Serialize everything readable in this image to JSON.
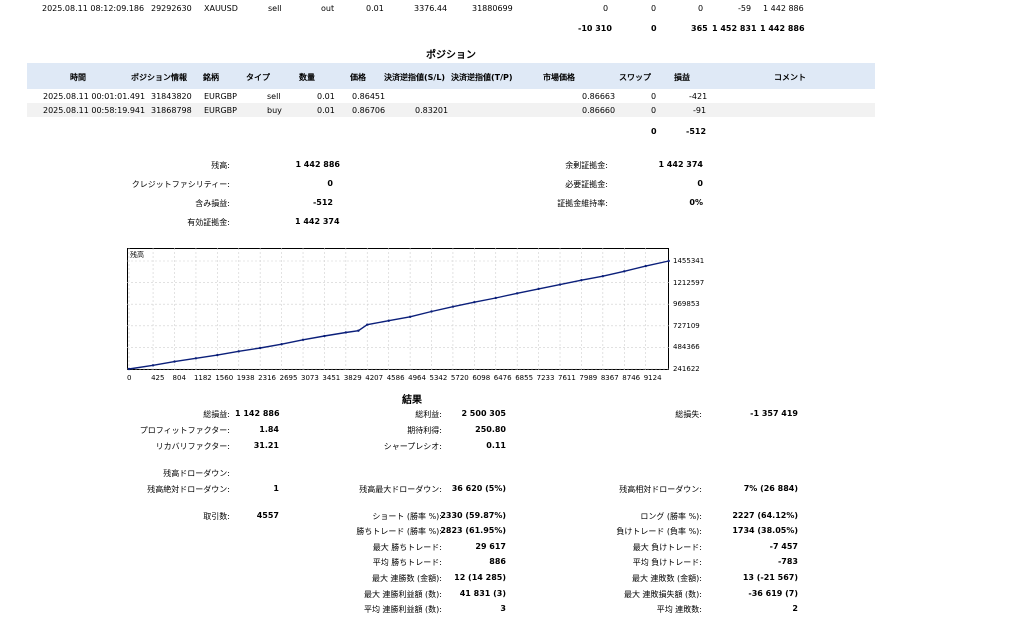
{
  "top_row": {
    "time": "2025.08.11 08:12:09.186",
    "order": "29292630",
    "symbol": "XAUUSD",
    "type": "sell",
    "direction": "out",
    "volume": "0.01",
    "price": "3376.44",
    "deal": "31880699",
    "commission": "0",
    "fee": "0",
    "swap": "0",
    "profit": "-59",
    "balance": "1 442 886"
  },
  "totals_row": {
    "commission": "-10 310",
    "fee": "0",
    "swap": "365",
    "profit": "1 452 831",
    "balance": "1 442 886"
  },
  "positions": {
    "title": "ポジション",
    "headers": {
      "time": "時間",
      "position": "ポジション情報",
      "symbol": "銘柄",
      "type": "タイプ",
      "volume": "数量",
      "price": "価格",
      "sl": "決済逆指値(S/L)",
      "tp": "決済逆指値(T/P)",
      "market_price": "市場価格",
      "swap": "スワップ",
      "profit": "損益",
      "comment": "コメント"
    },
    "rows": [
      {
        "time": "2025.08.11 00:01:01.491",
        "position": "31843820",
        "symbol": "EURGBP",
        "type": "sell",
        "volume": "0.01",
        "price": "0.86451",
        "sl": "",
        "tp": "",
        "market_price": "0.86663",
        "swap": "0",
        "profit": "-421"
      },
      {
        "time": "2025.08.11 00:58:19.941",
        "position": "31868798",
        "symbol": "EURGBP",
        "type": "buy",
        "volume": "0.01",
        "price": "0.86706",
        "sl": "0.83201",
        "tp": "",
        "market_price": "0.86660",
        "swap": "0",
        "profit": "-91"
      }
    ],
    "total_swap": "0",
    "total_profit": "-512"
  },
  "account": {
    "balance_label": "残高:",
    "balance": "1 442 886",
    "credit_label": "クレジットファシリティー:",
    "credit": "0",
    "floating_label": "含み損益:",
    "floating": "-512",
    "equity_label": "有効証拠金:",
    "equity": "1 442 374",
    "free_margin_label": "余剰証拠金:",
    "free_margin": "1 442 374",
    "margin_label": "必要証拠金:",
    "margin": "0",
    "margin_level_label": "証拠金維持率:",
    "margin_level": "0%"
  },
  "chart_data": {
    "type": "line",
    "title": "残高",
    "x_ticks": [
      "0",
      "425",
      "804",
      "1182",
      "1560",
      "1938",
      "2316",
      "2695",
      "3073",
      "3451",
      "3829",
      "4207",
      "4586",
      "4964",
      "5342",
      "5720",
      "6098",
      "6476",
      "6855",
      "7233",
      "7611",
      "7989",
      "8367",
      "8746",
      "9124"
    ],
    "y_ticks": [
      "1455341",
      "1212597",
      "969853",
      "727109",
      "484366",
      "241622"
    ],
    "xlim": [
      0,
      9500
    ],
    "ylim": [
      241622,
      1455341
    ],
    "grid": true,
    "line_color": "#0b1f7a",
    "series": [
      {
        "x": [
          0,
          425,
          804,
          1182,
          1560,
          1938,
          2316,
          2695,
          3073,
          3451,
          3829,
          4050,
          4207,
          4586,
          4964,
          5342,
          5720,
          6098,
          6476,
          6855,
          7233,
          7611,
          7989,
          8367,
          8746,
          9124,
          9530
        ],
        "y": [
          241622,
          283000,
          325000,
          362000,
          398000,
          440000,
          478000,
          520000,
          570000,
          612000,
          652000,
          672000,
          740000,
          784000,
          828000,
          888000,
          942000,
          992000,
          1040000,
          1092000,
          1142000,
          1190000,
          1240000,
          1285000,
          1340000,
          1398000,
          1455341
        ]
      }
    ]
  },
  "results": {
    "title": "結果",
    "net_profit_label": "総損益:",
    "net_profit": "1 142 886",
    "gross_profit_label": "総利益:",
    "gross_profit": "2 500 305",
    "gross_loss_label": "総損失:",
    "gross_loss": "-1 357 419",
    "profit_factor_label": "プロフィットファクター:",
    "profit_factor": "1.84",
    "expected_payoff_label": "期待利得:",
    "expected_payoff": "250.80",
    "recovery_factor_label": "リカバリファクター:",
    "recovery_factor": "31.21",
    "sharpe_label": "シャープレシオ:",
    "sharpe": "0.11",
    "drawdown_label": "残高ドローダウン:",
    "abs_drawdown_label": "残高絶対ドローダウン:",
    "abs_drawdown": "1",
    "max_drawdown_label": "残高最大ドローダウン:",
    "max_drawdown": "36 620 (5%)",
    "rel_drawdown_label": "残高相対ドローダウン:",
    "rel_drawdown": "7% (26 884)",
    "trades_label": "取引数:",
    "trades": "4557",
    "short_label": "ショート (勝率 %):",
    "short": "2330 (59.87%)",
    "long_label": "ロング (勝率 %):",
    "long": "2227 (64.12%)",
    "win_trades_label": "勝ちトレード (勝率 %):",
    "win_trades": "2823 (61.95%)",
    "loss_trades_label": "負けトレード (負率 %):",
    "loss_trades": "1734 (38.05%)",
    "max_win_label": "最大 勝ちトレード:",
    "max_win": "29 617",
    "max_loss_label": "最大 負けトレード:",
    "max_loss": "-7 457",
    "avg_win_label": "平均 勝ちトレード:",
    "avg_win": "886",
    "avg_loss_label": "平均 負けトレード:",
    "avg_loss": "-783",
    "max_consec_wins_label": "最大 連勝数 (金額):",
    "max_consec_wins": "12 (14 285)",
    "max_consec_losses_label": "最大 連敗数 (金額):",
    "max_consec_losses": "13 (-21 567)",
    "max_consec_profit_label": "最大 連勝利益額 (数):",
    "max_consec_profit": "41 831 (3)",
    "max_consec_loss_label": "最大 連敗損失額 (数):",
    "max_consec_loss": "-36 619 (7)",
    "avg_consec_wins_label": "平均 連勝利益額 (数):",
    "avg_consec_wins": "3",
    "avg_consec_losses_label": "平均 連敗数:",
    "avg_consec_losses": "2"
  }
}
